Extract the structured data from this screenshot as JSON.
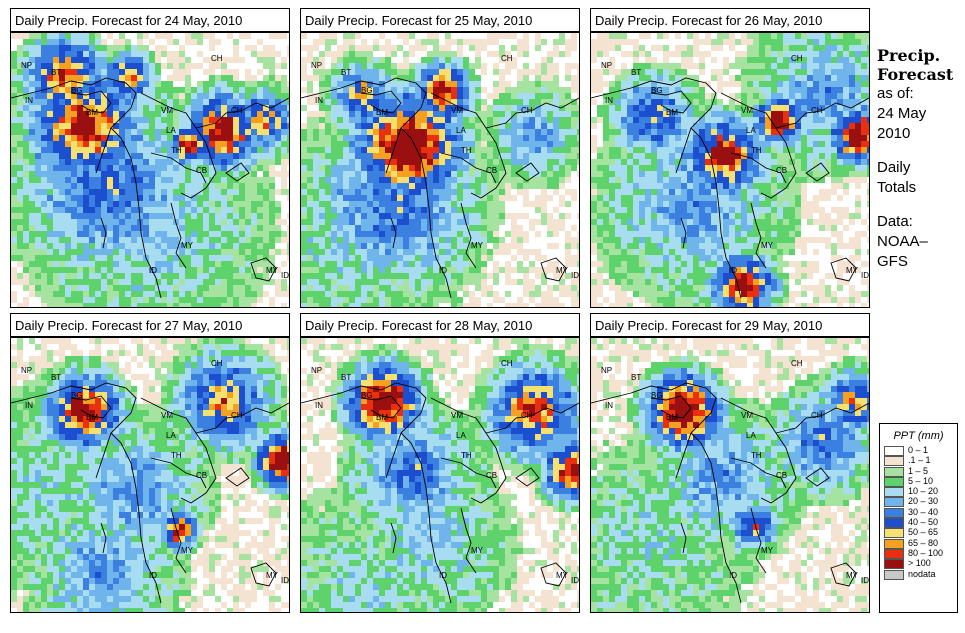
{
  "panels": [
    {
      "title": "Daily Precip. Forecast for  24 May, 2010"
    },
    {
      "title": "Daily Precip. Forecast for  25 May, 2010"
    },
    {
      "title": "Daily Precip. Forecast for  26 May, 2010"
    },
    {
      "title": "Daily Precip. Forecast for  27 May, 2010"
    },
    {
      "title": "Daily Precip. Forecast for  28 May, 2010"
    },
    {
      "title": "Daily Precip. Forecast for  29 May, 2010"
    }
  ],
  "map_labels": [
    "NP",
    "BT",
    "BG",
    "IN",
    "BM",
    "CH",
    "VM",
    "LA",
    "TH",
    "CB",
    "CH",
    "MY",
    "ID",
    "MY",
    "ID"
  ],
  "side": {
    "title_line1": "Precip.",
    "title_line2": "Forecast",
    "asof": "as of:",
    "date_line1": "24 May",
    "date_line2": "2010",
    "daily1": "Daily",
    "daily2": "Totals",
    "data1": "Data:",
    "data2": "NOAA–",
    "data3": "GFS"
  },
  "legend": {
    "title": "PPT (mm)",
    "items": [
      {
        "label": "0 – 1",
        "color": "#ffffff"
      },
      {
        "label": ".1 – 1",
        "color": "#f5e3d1"
      },
      {
        "label": "1 – 5",
        "color": "#a7e3a0"
      },
      {
        "label": "5 – 10",
        "color": "#5fd36b"
      },
      {
        "label": "10 – 20",
        "color": "#a8dcf0"
      },
      {
        "label": "20 – 30",
        "color": "#6fb4ea"
      },
      {
        "label": "30 – 40",
        "color": "#3b7fe0"
      },
      {
        "label": "40 – 50",
        "color": "#1c4fd0"
      },
      {
        "label": "50 – 65",
        "color": "#f5e070"
      },
      {
        "label": "65 – 80",
        "color": "#f5a020"
      },
      {
        "label": "80 – 100",
        "color": "#e83010"
      },
      {
        "label": "> 100",
        "color": "#9a1010"
      },
      {
        "label": "nodata",
        "color": "#c8c8c8"
      }
    ]
  }
}
